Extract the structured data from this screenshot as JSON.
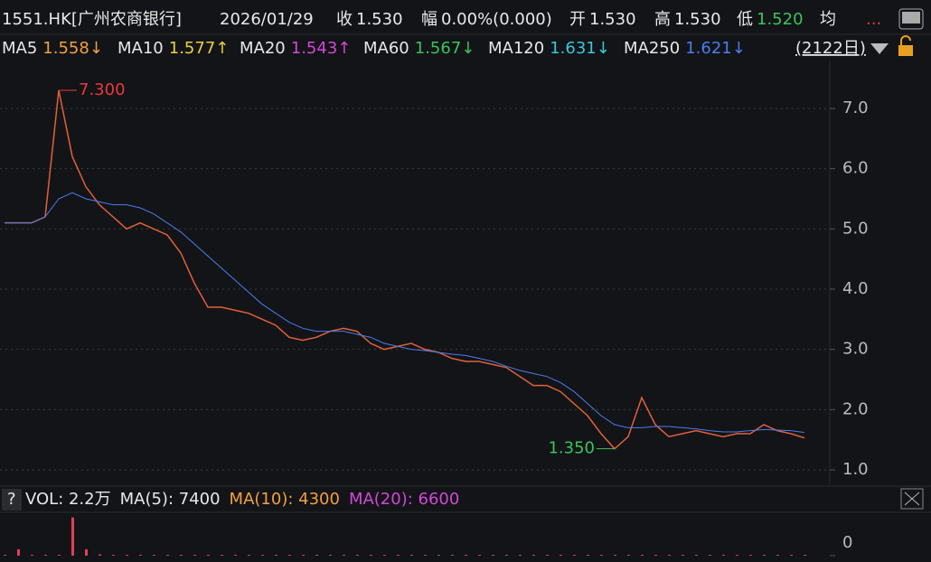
{
  "header": {
    "title": "1551.HK[广州农商银行]",
    "date": "2026/01/29",
    "quotes": [
      {
        "label": "收",
        "value": "1.530",
        "color": "#e8e8e8"
      },
      {
        "label": "幅",
        "value": "0.00%(0.000)",
        "color": "#e8e8e8"
      },
      {
        "label": "开",
        "value": "1.530",
        "color": "#e8e8e8"
      },
      {
        "label": "高",
        "value": "1.530",
        "color": "#e8e8e8"
      },
      {
        "label": "低",
        "value": "1.520",
        "color": "#3cc35a"
      },
      {
        "label": "均"
      }
    ],
    "more": "..."
  },
  "ma_legend": {
    "items": [
      {
        "name": "MA5",
        "value": "1.558↓",
        "color": "#f0a040"
      },
      {
        "name": "MA10",
        "value": "1.577↑",
        "color": "#e8d040"
      },
      {
        "name": "MA20",
        "value": "1.543↑",
        "color": "#d048d8"
      },
      {
        "name": "MA60",
        "value": "1.567↓",
        "color": "#3cc35a"
      },
      {
        "name": "MA120",
        "value": "1.631↓",
        "color": "#38c8d8"
      },
      {
        "name": "MA250",
        "value": "1.621↓",
        "color": "#4a7cf0"
      }
    ],
    "period": "(2122日)"
  },
  "volume_header": {
    "help": "?",
    "items": [
      {
        "text": "VOL: 2.2万",
        "color": "#e8e8e8"
      },
      {
        "text": "MA(5): 7400",
        "color": "#e8e8e8"
      },
      {
        "text": "MA(10): 4300",
        "color": "#f0a040"
      },
      {
        "text": "MA(20): 6600",
        "color": "#d048d8"
      }
    ]
  },
  "chart_data": [
    {
      "type": "line",
      "categories": [
        null,
        null,
        null,
        null,
        null,
        null,
        null,
        null,
        null,
        null,
        null,
        null,
        null,
        null,
        null,
        null,
        null,
        null,
        null,
        null,
        null,
        null,
        null,
        null,
        null,
        null,
        null,
        null,
        null,
        null,
        null,
        null,
        null,
        null,
        null,
        null,
        null,
        null,
        null,
        null,
        null,
        null,
        null,
        null,
        null,
        null,
        null,
        null,
        null,
        null,
        null,
        null,
        null,
        null,
        null,
        null,
        null,
        null,
        null,
        null
      ],
      "series": [
        {
          "color": "#e0603a",
          "values": [
            5.1,
            5.1,
            5.1,
            5.2,
            7.3,
            6.2,
            5.7,
            5.4,
            5.2,
            5.0,
            5.1,
            5.0,
            4.9,
            4.6,
            4.1,
            3.7,
            3.7,
            3.65,
            3.6,
            3.5,
            3.4,
            3.2,
            3.15,
            3.2,
            3.3,
            3.35,
            3.3,
            3.1,
            3.0,
            3.05,
            3.1,
            3.0,
            2.95,
            2.85,
            2.8,
            2.8,
            2.75,
            2.7,
            2.55,
            2.4,
            2.4,
            2.3,
            2.1,
            1.9,
            1.6,
            1.35,
            1.55,
            2.2,
            1.75,
            1.55,
            1.6,
            1.65,
            1.6,
            1.55,
            1.6,
            1.6,
            1.75,
            1.65,
            1.6,
            1.53
          ]
        },
        {
          "color": "#4a7cf0",
          "values": [
            5.1,
            5.1,
            5.1,
            5.2,
            5.5,
            5.6,
            5.5,
            5.45,
            5.4,
            5.4,
            5.35,
            5.25,
            5.1,
            4.95,
            4.75,
            4.55,
            4.35,
            4.15,
            3.95,
            3.75,
            3.6,
            3.45,
            3.35,
            3.3,
            3.3,
            3.3,
            3.25,
            3.2,
            3.1,
            3.05,
            3.0,
            2.98,
            2.95,
            2.92,
            2.9,
            2.85,
            2.8,
            2.72,
            2.65,
            2.6,
            2.55,
            2.45,
            2.3,
            2.1,
            1.9,
            1.75,
            1.7,
            1.7,
            1.72,
            1.72,
            1.7,
            1.68,
            1.65,
            1.63,
            1.63,
            1.65,
            1.67,
            1.66,
            1.65,
            1.62
          ]
        }
      ],
      "ylim": [
        0.775,
        7.78
      ],
      "yticks": [
        {
          "value": 1,
          "label": "1.0"
        },
        {
          "value": 2,
          "label": "2.0"
        },
        {
          "value": 3,
          "label": "3.0"
        },
        {
          "value": 4,
          "label": "4.0"
        },
        {
          "value": 5,
          "label": "5.0"
        },
        {
          "value": 6,
          "label": "6.0"
        },
        {
          "value": 7,
          "label": "7.0"
        }
      ],
      "grid": true,
      "annotations": [
        {
          "value": 7.3,
          "label": "7.300",
          "color": "#e83a3a"
        },
        {
          "value": 1.35,
          "label": "1.350",
          "color": "#3cc35a"
        }
      ]
    },
    {
      "type": "bar",
      "categories": [
        null,
        null,
        null,
        null,
        null,
        null,
        null,
        null,
        null,
        null,
        null,
        null,
        null,
        null,
        null,
        null,
        null,
        null,
        null,
        null,
        null,
        null,
        null,
        null,
        null,
        null,
        null,
        null,
        null,
        null,
        null,
        null,
        null,
        null,
        null,
        null,
        null,
        null,
        null,
        null,
        null,
        null,
        null,
        null,
        null,
        null,
        null,
        null,
        null,
        null,
        null,
        null,
        null,
        null,
        null,
        null,
        null,
        null,
        null,
        null
      ],
      "color": "#e0405a",
      "values": [
        20000,
        150000,
        20000,
        20000,
        20000,
        900000,
        150000,
        30000,
        20000,
        20000,
        20000,
        20000,
        20000,
        20000,
        20000,
        20000,
        20000,
        20000,
        20000,
        20000,
        20000,
        20000,
        20000,
        20000,
        20000,
        20000,
        20000,
        20000,
        20000,
        20000,
        20000,
        20000,
        20000,
        20000,
        20000,
        20000,
        20000,
        20000,
        20000,
        20000,
        20000,
        20000,
        20000,
        20000,
        20000,
        20000,
        20000,
        20000,
        20000,
        20000,
        20000,
        20000,
        20000,
        20000,
        20000,
        20000,
        20000,
        20000,
        20000,
        20000
      ],
      "ylim": [
        0,
        1000000
      ],
      "yticks": [
        0
      ]
    }
  ]
}
